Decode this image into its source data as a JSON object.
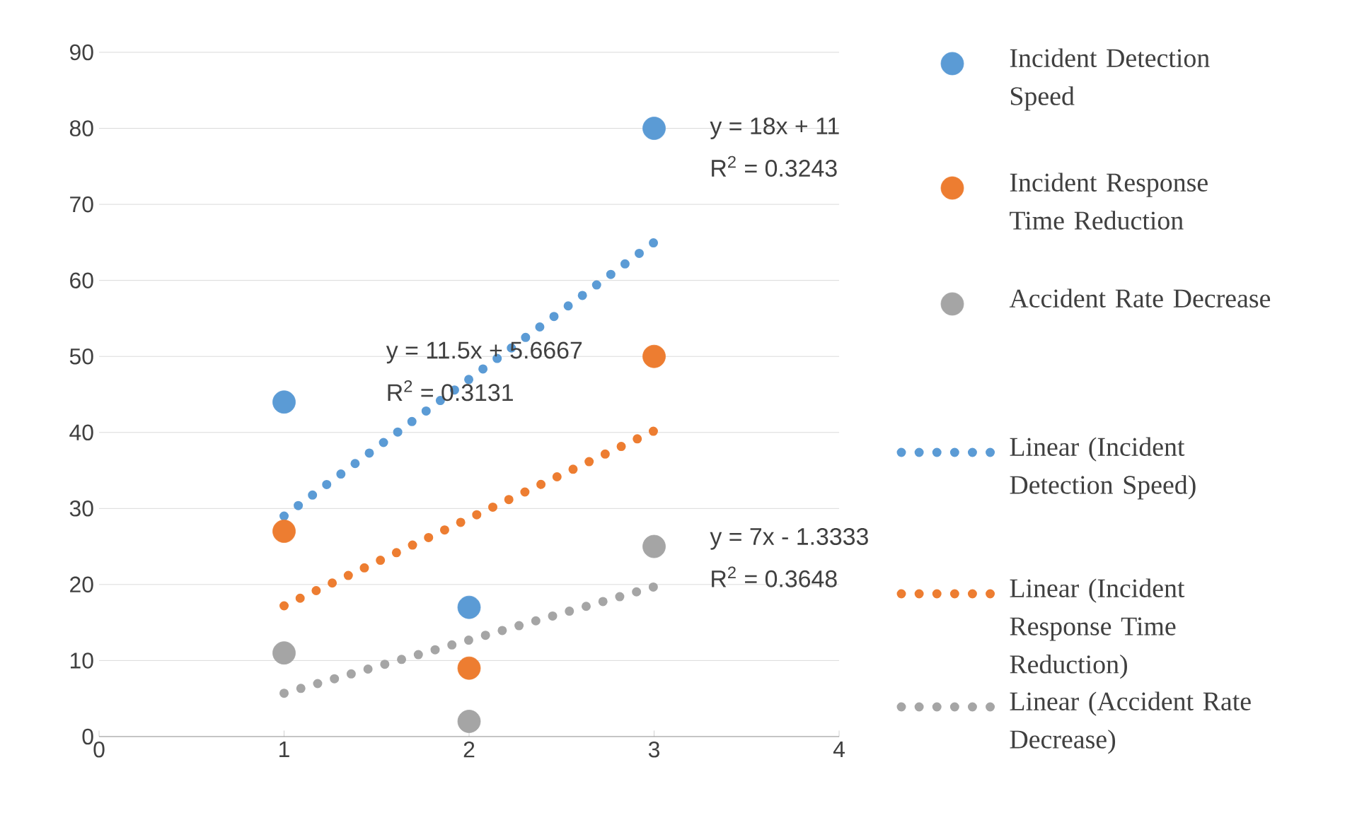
{
  "chart_data": {
    "type": "scatter",
    "xlim": [
      0,
      4
    ],
    "ylim": [
      0,
      90
    ],
    "xticks": [
      0,
      1,
      2,
      3,
      4
    ],
    "yticks": [
      0,
      10,
      20,
      30,
      40,
      50,
      60,
      70,
      80,
      90
    ],
    "grid": "y",
    "legend": "right",
    "marker": "circle",
    "series": [
      {
        "name": "Incident Detection Speed",
        "color": "#5b9bd5",
        "x": [
          1,
          2,
          3
        ],
        "values": [
          44,
          17,
          80
        ]
      },
      {
        "name": "Incident Response Time Reduction",
        "color": "#ed7d31",
        "x": [
          1,
          2,
          3
        ],
        "values": [
          27,
          9,
          50
        ]
      },
      {
        "name": "Accident Rate Decrease",
        "color": "#a5a5a5",
        "x": [
          1,
          2,
          3
        ],
        "values": [
          11,
          2,
          25
        ]
      },
      {
        "name": "Linear (Incident Detection Speed)",
        "type": "line",
        "line_style": "dotted",
        "marker": "none",
        "color": "#5b9bd5",
        "x": [
          1,
          3
        ],
        "values": [
          29,
          65
        ]
      },
      {
        "name": "Linear (Incident Response Time Reduction)",
        "type": "line",
        "line_style": "dotted",
        "marker": "none",
        "color": "#ed7d31",
        "x": [
          1,
          3
        ],
        "values": [
          17.2,
          40.2
        ]
      },
      {
        "name": "Linear (Accident Rate Decrease)",
        "type": "line",
        "line_style": "dotted",
        "marker": "none",
        "color": "#a5a5a5",
        "x": [
          1,
          3
        ],
        "values": [
          5.7,
          19.7
        ]
      }
    ],
    "annotations": [
      "y = 18x + 11",
      "R$^{2}$ = 0.3243",
      "y = 11.5x + 5.6667",
      "R$^{2}$ = 0.3131",
      "y = 7x - 1.3333",
      "R$^{2}$ = 0.3648"
    ]
  }
}
